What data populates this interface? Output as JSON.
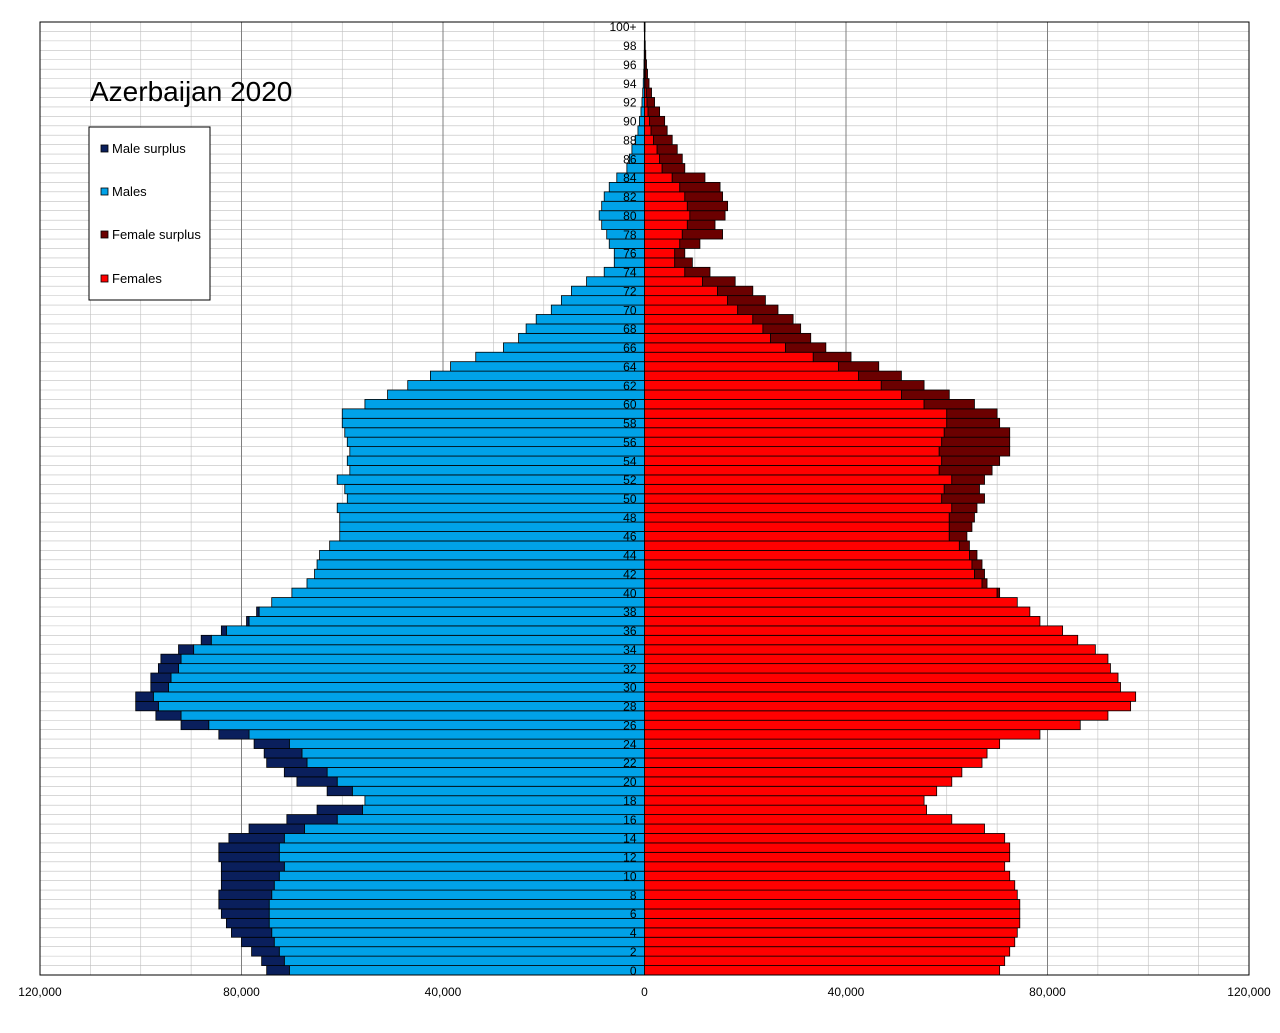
{
  "chart_data": {
    "type": "bar",
    "orientation": "horizontal",
    "title": "Azerbaijan 2020",
    "legend_placement": "top-left",
    "colors": {
      "males": "#00a2e8",
      "male_surplus": "#0a1f5c",
      "females": "#ff0000",
      "female_surplus": "#6b0000",
      "edge": "#000000",
      "grid_major": "#7f7f7f",
      "grid_minor": "#bfbfbf"
    },
    "legend": [
      {
        "key": "male_surplus",
        "label": "Male surplus"
      },
      {
        "key": "males",
        "label": "Males"
      },
      {
        "key": "female_surplus",
        "label": "Female surplus"
      },
      {
        "key": "females",
        "label": "Females"
      }
    ],
    "x_ticks": [
      {
        "value": -120000,
        "label": "120,000"
      },
      {
        "value": -80000,
        "label": "80,000"
      },
      {
        "value": -40000,
        "label": "40,000"
      },
      {
        "value": 0,
        "label": "0"
      },
      {
        "value": 40000,
        "label": "40,000"
      },
      {
        "value": 80000,
        "label": "80,000"
      },
      {
        "value": 120000,
        "label": "120,000"
      }
    ],
    "xlim": [
      -120000,
      120000
    ],
    "grid": true,
    "ages": [
      "0",
      "1",
      "2",
      "3",
      "4",
      "5",
      "6",
      "7",
      "8",
      "9",
      "10",
      "11",
      "12",
      "13",
      "14",
      "15",
      "16",
      "17",
      "18",
      "19",
      "20",
      "21",
      "22",
      "23",
      "24",
      "25",
      "26",
      "27",
      "28",
      "29",
      "30",
      "31",
      "32",
      "33",
      "34",
      "35",
      "36",
      "37",
      "38",
      "39",
      "40",
      "41",
      "42",
      "43",
      "44",
      "45",
      "46",
      "47",
      "48",
      "49",
      "50",
      "51",
      "52",
      "53",
      "54",
      "55",
      "56",
      "57",
      "58",
      "59",
      "60",
      "61",
      "62",
      "63",
      "64",
      "65",
      "66",
      "67",
      "68",
      "69",
      "70",
      "71",
      "72",
      "73",
      "74",
      "75",
      "76",
      "77",
      "78",
      "79",
      "80",
      "81",
      "82",
      "83",
      "84",
      "85",
      "86",
      "87",
      "88",
      "89",
      "90",
      "91",
      "92",
      "93",
      "94",
      "95",
      "96",
      "97",
      "98",
      "99",
      "100+"
    ],
    "age_labels": [
      "0",
      "2",
      "4",
      "6",
      "8",
      "10",
      "12",
      "14",
      "16",
      "18",
      "20",
      "22",
      "24",
      "26",
      "28",
      "30",
      "32",
      "34",
      "36",
      "38",
      "40",
      "42",
      "44",
      "46",
      "48",
      "50",
      "52",
      "54",
      "56",
      "58",
      "60",
      "62",
      "64",
      "66",
      "68",
      "70",
      "72",
      "74",
      "76",
      "78",
      "80",
      "82",
      "84",
      "86",
      "88",
      "90",
      "92",
      "94",
      "96",
      "98",
      "100+"
    ],
    "series": [
      {
        "name": "Males",
        "values": [
          75000,
          76000,
          78000,
          80000,
          82000,
          83000,
          84000,
          84500,
          84500,
          84000,
          84000,
          84000,
          84500,
          84500,
          82500,
          78500,
          71000,
          65000,
          55500,
          63000,
          69000,
          71500,
          75000,
          75500,
          77500,
          84500,
          92000,
          97000,
          101000,
          101000,
          98000,
          98000,
          96500,
          96000,
          92500,
          88000,
          84000,
          79000,
          77000,
          74000,
          70000,
          67000,
          65500,
          65000,
          64500,
          62500,
          60500,
          60500,
          60500,
          61000,
          59000,
          59500,
          61000,
          58500,
          59000,
          58500,
          59000,
          59500,
          60000,
          60000,
          55500,
          51000,
          47000,
          42500,
          38500,
          33500,
          28000,
          25000,
          23500,
          21500,
          18500,
          16500,
          14500,
          11500,
          8000,
          6000,
          6000,
          7000,
          7500,
          8500,
          9000,
          8500,
          8000,
          7000,
          5500,
          3500,
          3000,
          2500,
          1800,
          1300,
          1000,
          700,
          500,
          350,
          250,
          150,
          100,
          60,
          40,
          20,
          50
        ]
      },
      {
        "name": "Females",
        "values": [
          70500,
          71500,
          72500,
          73500,
          74000,
          74500,
          74500,
          74500,
          74000,
          73500,
          72500,
          71500,
          72500,
          72500,
          71500,
          67500,
          61000,
          56000,
          55500,
          58000,
          61000,
          63000,
          67000,
          68000,
          70500,
          78500,
          86500,
          92000,
          96500,
          97500,
          94500,
          94000,
          92500,
          92000,
          89500,
          86000,
          83000,
          78500,
          76500,
          74000,
          70500,
          68000,
          67500,
          67000,
          66000,
          64500,
          64000,
          65000,
          65500,
          66000,
          67500,
          66500,
          67500,
          69000,
          70500,
          72500,
          72500,
          72500,
          70500,
          70000,
          65500,
          60500,
          55500,
          51000,
          46500,
          41000,
          36000,
          33000,
          31000,
          29500,
          26500,
          24000,
          21500,
          18000,
          13000,
          9500,
          8000,
          11000,
          15500,
          14000,
          16000,
          16500,
          15500,
          15000,
          12000,
          8000,
          7500,
          6500,
          5500,
          4500,
          4000,
          3000,
          2000,
          1400,
          900,
          600,
          400,
          250,
          150,
          80,
          100
        ]
      }
    ]
  }
}
